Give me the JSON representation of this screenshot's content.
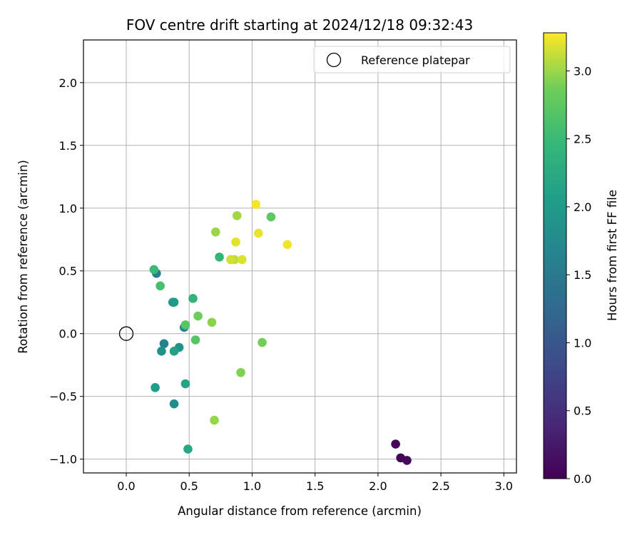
{
  "chart_data": {
    "type": "scatter",
    "title": "FOV centre drift starting at 2024/12/18 09:32:43",
    "xlabel": "Angular distance from reference (arcmin)",
    "ylabel": "Rotation from reference (arcmin)",
    "xlim": [
      -0.34,
      3.1
    ],
    "ylim": [
      -1.11,
      2.34
    ],
    "xticks": [
      0.0,
      0.5,
      1.0,
      1.5,
      2.0,
      2.5,
      3.0
    ],
    "xtick_labels": [
      "0.0",
      "0.5",
      "1.0",
      "1.5",
      "2.0",
      "2.5",
      "3.0"
    ],
    "yticks": [
      -1.0,
      -0.5,
      0.0,
      0.5,
      1.0,
      1.5,
      2.0
    ],
    "ytick_labels": [
      "−1.0",
      "−0.5",
      "0.0",
      "0.5",
      "1.0",
      "1.5",
      "2.0"
    ],
    "grid": true,
    "legend": {
      "label": "Reference platepar",
      "placement": "top-right"
    },
    "reference_point": {
      "x": 0.0,
      "y": 0.0
    },
    "colorbar": {
      "label": "Hours from first FF file",
      "colormap": "viridis",
      "range": [
        0.0,
        3.28
      ],
      "ticks": [
        0.0,
        0.5,
        1.0,
        1.5,
        2.0,
        2.5,
        3.0
      ],
      "tick_labels": [
        "0.0",
        "0.5",
        "1.0",
        "1.5",
        "2.0",
        "2.5",
        "3.0"
      ]
    },
    "points": [
      {
        "x": 2.14,
        "y": -0.88,
        "hours": 0.02
      },
      {
        "x": 2.18,
        "y": -0.99,
        "hours": 0.05
      },
      {
        "x": 2.23,
        "y": -1.01,
        "hours": 0.08
      },
      {
        "x": 0.24,
        "y": 0.48,
        "hours": 1.55
      },
      {
        "x": 0.3,
        "y": -0.08,
        "hours": 1.65
      },
      {
        "x": 0.46,
        "y": 0.05,
        "hours": 1.72
      },
      {
        "x": 0.38,
        "y": -0.56,
        "hours": 1.8
      },
      {
        "x": 0.28,
        "y": -0.14,
        "hours": 1.85
      },
      {
        "x": 0.42,
        "y": -0.11,
        "hours": 1.9
      },
      {
        "x": 0.37,
        "y": 0.25,
        "hours": 1.95
      },
      {
        "x": 0.38,
        "y": 0.25,
        "hours": 2.0
      },
      {
        "x": 0.23,
        "y": -0.43,
        "hours": 2.05
      },
      {
        "x": 0.38,
        "y": -0.14,
        "hours": 2.1
      },
      {
        "x": 0.47,
        "y": -0.4,
        "hours": 2.15
      },
      {
        "x": 0.49,
        "y": -0.92,
        "hours": 2.2
      },
      {
        "x": 0.53,
        "y": 0.28,
        "hours": 2.4
      },
      {
        "x": 0.74,
        "y": 0.61,
        "hours": 2.45
      },
      {
        "x": 0.22,
        "y": 0.51,
        "hours": 2.5
      },
      {
        "x": 0.27,
        "y": 0.38,
        "hours": 2.6
      },
      {
        "x": 0.55,
        "y": -0.05,
        "hours": 2.7
      },
      {
        "x": 0.47,
        "y": 0.07,
        "hours": 2.72
      },
      {
        "x": 1.15,
        "y": 0.93,
        "hours": 2.75
      },
      {
        "x": 0.57,
        "y": 0.14,
        "hours": 2.85
      },
      {
        "x": 1.08,
        "y": -0.07,
        "hours": 2.88
      },
      {
        "x": 0.91,
        "y": -0.31,
        "hours": 2.92
      },
      {
        "x": 0.68,
        "y": 0.09,
        "hours": 2.95
      },
      {
        "x": 0.7,
        "y": -0.69,
        "hours": 2.98
      },
      {
        "x": 0.71,
        "y": 0.81,
        "hours": 3.0
      },
      {
        "x": 0.88,
        "y": 0.94,
        "hours": 3.02
      },
      {
        "x": 0.86,
        "y": 0.59,
        "hours": 3.1
      },
      {
        "x": 0.83,
        "y": 0.59,
        "hours": 3.15
      },
      {
        "x": 0.92,
        "y": 0.59,
        "hours": 3.18
      },
      {
        "x": 0.87,
        "y": 0.73,
        "hours": 3.2
      },
      {
        "x": 1.05,
        "y": 0.8,
        "hours": 3.22
      },
      {
        "x": 1.28,
        "y": 0.71,
        "hours": 3.24
      },
      {
        "x": 1.03,
        "y": 1.03,
        "hours": 3.26
      }
    ]
  }
}
